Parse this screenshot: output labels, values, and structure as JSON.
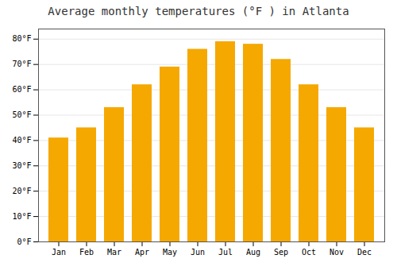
{
  "chart_data": {
    "type": "bar",
    "title": "Average monthly temperatures (°F ) in Atlanta",
    "categories": [
      "Jan",
      "Feb",
      "Mar",
      "Apr",
      "May",
      "Jun",
      "Jul",
      "Aug",
      "Sep",
      "Oct",
      "Nov",
      "Dec"
    ],
    "values": [
      41,
      45,
      53,
      62,
      69,
      76,
      79,
      78,
      72,
      62,
      53,
      45
    ],
    "color": "#F5A800",
    "ylim": [
      0,
      84
    ],
    "yticks": [
      {
        "value": 0,
        "label": "0°F"
      },
      {
        "value": 10,
        "label": "10°F"
      },
      {
        "value": 20,
        "label": "20°F"
      },
      {
        "value": 30,
        "label": "30°F"
      },
      {
        "value": 40,
        "label": "40°F"
      },
      {
        "value": 50,
        "label": "50°F"
      },
      {
        "value": 60,
        "label": "60°F"
      },
      {
        "value": 70,
        "label": "70°F"
      },
      {
        "value": 80,
        "label": "80°F"
      }
    ],
    "grid": true
  }
}
